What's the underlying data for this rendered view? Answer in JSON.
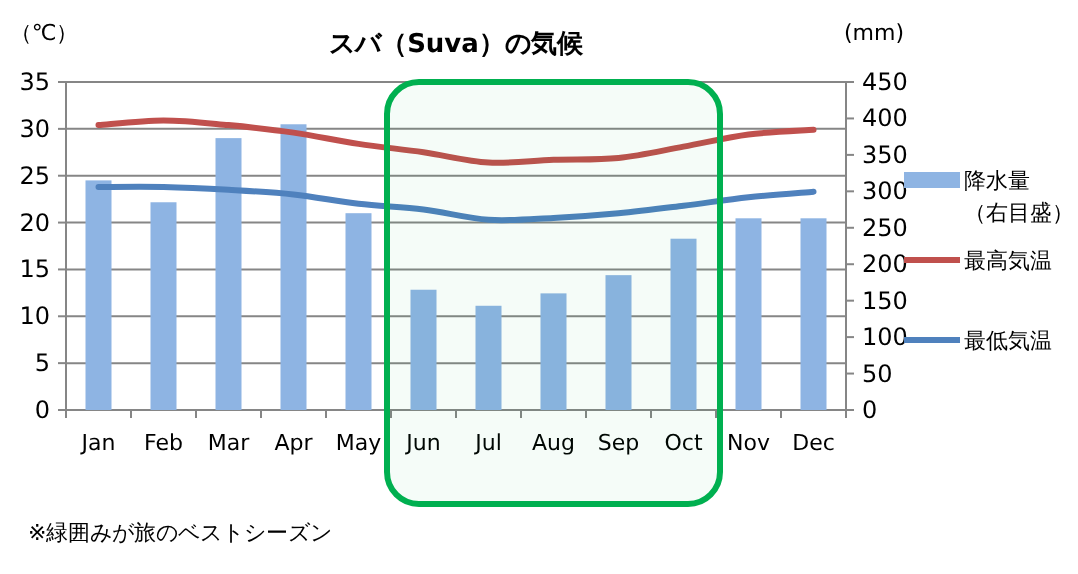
{
  "chart_data": {
    "type": "bar",
    "title": "スバ（Suva）の気候",
    "ylabel": "（℃）",
    "y2label": "(mm)",
    "categories": [
      "Jan",
      "Feb",
      "Mar",
      "Apr",
      "May",
      "Jun",
      "Jul",
      "Aug",
      "Sep",
      "Oct",
      "Nov",
      "Dec"
    ],
    "series": [
      {
        "name": "降水量（右目盛）",
        "axis": "y2",
        "color": "#8eb4e3",
        "values": [
          315,
          285,
          373,
          392,
          270,
          165,
          143,
          160,
          185,
          235,
          263,
          263
        ]
      },
      {
        "name": "最高気温",
        "type": "line",
        "color": "#c0504d",
        "values": [
          30.4,
          30.9,
          30.4,
          29.6,
          28.4,
          27.5,
          26.4,
          26.7,
          26.9,
          28.1,
          29.4,
          29.9
        ]
      },
      {
        "name": "最低気温",
        "type": "line",
        "color": "#4f81bd",
        "values": [
          23.8,
          23.8,
          23.5,
          23.0,
          22.0,
          21.4,
          20.3,
          20.5,
          21.0,
          21.8,
          22.7,
          23.3
        ]
      }
    ],
    "ylim": [
      0,
      35
    ],
    "yticks": [
      0,
      5,
      10,
      15,
      20,
      25,
      30,
      35
    ],
    "y2lim": [
      0,
      450
    ],
    "y2ticks": [
      0,
      50,
      100,
      150,
      200,
      250,
      300,
      350,
      400,
      450
    ],
    "grid": "y",
    "legend": "right",
    "bands": [
      {
        "axis": "x",
        "from": "Jun",
        "to": "Oct",
        "color": "#00b050"
      }
    ],
    "annotations": [
      "※緑囲みが旅のベストシーズン"
    ]
  }
}
